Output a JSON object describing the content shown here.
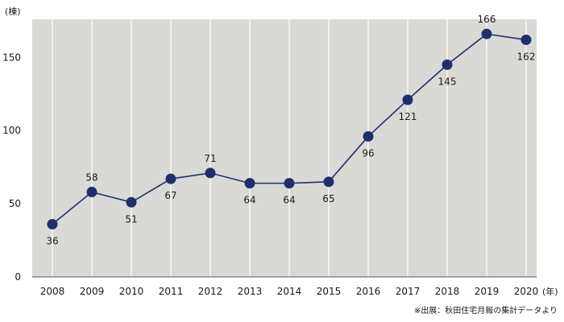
{
  "chart_data": {
    "type": "line",
    "x": [
      "2008",
      "2009",
      "2010",
      "2011",
      "2012",
      "2013",
      "2014",
      "2015",
      "2016",
      "2017",
      "2018",
      "2019",
      "2020"
    ],
    "series": [
      {
        "values": [
          36,
          58,
          51,
          67,
          71,
          64,
          64,
          65,
          96,
          121,
          145,
          166,
          162
        ]
      }
    ],
    "data_labels": [
      "36",
      "58",
      "51",
      "67",
      "71",
      "64",
      "64",
      "65",
      "96",
      "121",
      "145",
      "166",
      "162"
    ],
    "ylim": [
      0,
      176
    ],
    "yticks": [
      0,
      50,
      100,
      150
    ],
    "y_unit": "(棟)",
    "x_unit": "(年)",
    "grid": "vertical",
    "colors": {
      "line": "#1f2f6e",
      "marker": "#1f2f6e",
      "plot_bg": "#d9d9d6",
      "grid": "#ffffff"
    }
  },
  "source_note": "※出展：秋田住宅月報の集計データより"
}
